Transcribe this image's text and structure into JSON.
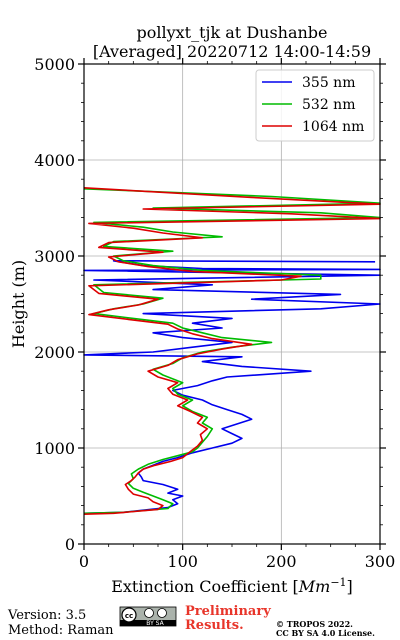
{
  "colors": {
    "s355": "#0000ee",
    "s532": "#00bb00",
    "s1064": "#dd0000",
    "grid": "#b0b0b0",
    "prelim": "#e8352a"
  },
  "footer": {
    "version": "Version: 3.5",
    "method": "Method: Raman",
    "preliminary_line1": "Preliminary",
    "preliminary_line2": "Results.",
    "copyright_line1": "© TROPOS 2022.",
    "copyright_line2": "CC BY SA 4.0 License.",
    "license_badge_text": "BY SA",
    "license_badge_icon": "creative-commons-icon"
  },
  "chart_data": {
    "type": "line",
    "title": "pollyxt_tjk at Dushanbe",
    "subtitle": "[Averaged] 20220712 14:00-14:59",
    "xlabel": "Extinction Coefficient [",
    "xlabel_unit": "Mm",
    "xlabel_unit_exp": "−1",
    "xlabel_close": "]",
    "ylabel": "Height (m)",
    "xlim": [
      0,
      300
    ],
    "ylim": [
      0,
      5000
    ],
    "xticks": [
      0,
      100,
      200,
      300
    ],
    "yticks": [
      0,
      1000,
      2000,
      3000,
      4000,
      5000
    ],
    "xtick_labels": [
      "0",
      "100",
      "200",
      "300"
    ],
    "ytick_labels": [
      "0",
      "1000",
      "2000",
      "3000",
      "4000",
      "5000"
    ],
    "grid": true,
    "legend_position": "top-right",
    "series": [
      {
        "name": "355 nm",
        "color_key": "s355",
        "points": [
          [
            0,
            320
          ],
          [
            40,
            330
          ],
          [
            85,
            380
          ],
          [
            95,
            420
          ],
          [
            90,
            460
          ],
          [
            100,
            500
          ],
          [
            85,
            530
          ],
          [
            95,
            570
          ],
          [
            80,
            620
          ],
          [
            60,
            660
          ],
          [
            58,
            700
          ],
          [
            55,
            740
          ],
          [
            60,
            780
          ],
          [
            70,
            820
          ],
          [
            80,
            860
          ],
          [
            95,
            900
          ],
          [
            110,
            950
          ],
          [
            130,
            1000
          ],
          [
            150,
            1050
          ],
          [
            160,
            1100
          ],
          [
            150,
            1150
          ],
          [
            140,
            1200
          ],
          [
            155,
            1250
          ],
          [
            170,
            1300
          ],
          [
            160,
            1350
          ],
          [
            145,
            1400
          ],
          [
            130,
            1450
          ],
          [
            120,
            1500
          ],
          [
            100,
            1550
          ],
          [
            90,
            1600
          ],
          [
            115,
            1650
          ],
          [
            130,
            1700
          ],
          [
            145,
            1740
          ],
          [
            230,
            1800
          ],
          [
            160,
            1850
          ],
          [
            120,
            1900
          ],
          [
            160,
            1950
          ],
          [
            0,
            1970
          ],
          [
            70,
            2000
          ],
          [
            110,
            2050
          ],
          [
            150,
            2100
          ],
          [
            100,
            2150
          ],
          [
            70,
            2200
          ],
          [
            140,
            2250
          ],
          [
            110,
            2300
          ],
          [
            150,
            2350
          ],
          [
            60,
            2400
          ],
          [
            240,
            2450
          ],
          [
            300,
            2500
          ],
          [
            170,
            2550
          ],
          [
            260,
            2600
          ],
          [
            70,
            2650
          ],
          [
            130,
            2700
          ],
          [
            10,
            2750
          ],
          [
            300,
            2800
          ],
          [
            0,
            2850
          ],
          [
            300,
            2860
          ],
          [
            120,
            2870
          ],
          [
            60,
            2900
          ],
          [
            30,
            2950
          ],
          [
            295,
            2940
          ]
        ]
      },
      {
        "name": "532 nm",
        "color_key": "s532",
        "points": [
          [
            0,
            320
          ],
          [
            40,
            330
          ],
          [
            85,
            370
          ],
          [
            90,
            420
          ],
          [
            80,
            460
          ],
          [
            70,
            500
          ],
          [
            60,
            540
          ],
          [
            50,
            580
          ],
          [
            45,
            630
          ],
          [
            50,
            680
          ],
          [
            48,
            730
          ],
          [
            55,
            780
          ],
          [
            65,
            830
          ],
          [
            80,
            880
          ],
          [
            95,
            920
          ],
          [
            110,
            960
          ],
          [
            115,
            1000
          ],
          [
            120,
            1060
          ],
          [
            125,
            1120
          ],
          [
            130,
            1200
          ],
          [
            120,
            1260
          ],
          [
            125,
            1320
          ],
          [
            110,
            1380
          ],
          [
            100,
            1440
          ],
          [
            110,
            1500
          ],
          [
            95,
            1560
          ],
          [
            90,
            1620
          ],
          [
            100,
            1680
          ],
          [
            80,
            1760
          ],
          [
            70,
            1820
          ],
          [
            90,
            1880
          ],
          [
            100,
            1940
          ],
          [
            120,
            2000
          ],
          [
            150,
            2050
          ],
          [
            190,
            2100
          ],
          [
            140,
            2150
          ],
          [
            120,
            2200
          ],
          [
            100,
            2250
          ],
          [
            90,
            2300
          ],
          [
            50,
            2350
          ],
          [
            10,
            2400
          ],
          [
            30,
            2450
          ],
          [
            60,
            2500
          ],
          [
            80,
            2560
          ],
          [
            20,
            2620
          ],
          [
            10,
            2700
          ],
          [
            240,
            2760
          ],
          [
            240,
            2800
          ],
          [
            120,
            2850
          ],
          [
            70,
            2900
          ],
          [
            40,
            2950
          ],
          [
            30,
            3000
          ],
          [
            90,
            3050
          ],
          [
            20,
            3100
          ],
          [
            30,
            3150
          ],
          [
            140,
            3200
          ],
          [
            90,
            3250
          ],
          [
            60,
            3300
          ],
          [
            10,
            3350
          ],
          [
            300,
            3400
          ],
          [
            240,
            3450
          ],
          [
            70,
            3500
          ],
          [
            300,
            3550
          ],
          [
            190,
            3620
          ],
          [
            0,
            3700
          ]
        ]
      },
      {
        "name": "1064 nm",
        "color_key": "s1064",
        "points": [
          [
            0,
            310
          ],
          [
            30,
            320
          ],
          [
            75,
            360
          ],
          [
            80,
            400
          ],
          [
            70,
            440
          ],
          [
            65,
            480
          ],
          [
            50,
            520
          ],
          [
            45,
            570
          ],
          [
            42,
            620
          ],
          [
            48,
            660
          ],
          [
            52,
            700
          ],
          [
            55,
            740
          ],
          [
            60,
            780
          ],
          [
            72,
            820
          ],
          [
            88,
            860
          ],
          [
            100,
            900
          ],
          [
            105,
            940
          ],
          [
            110,
            980
          ],
          [
            115,
            1020
          ],
          [
            120,
            1080
          ],
          [
            118,
            1140
          ],
          [
            125,
            1200
          ],
          [
            115,
            1260
          ],
          [
            120,
            1320
          ],
          [
            108,
            1380
          ],
          [
            95,
            1440
          ],
          [
            105,
            1500
          ],
          [
            90,
            1560
          ],
          [
            85,
            1620
          ],
          [
            95,
            1680
          ],
          [
            75,
            1740
          ],
          [
            65,
            1800
          ],
          [
            85,
            1860
          ],
          [
            95,
            1920
          ],
          [
            115,
            1980
          ],
          [
            140,
            2030
          ],
          [
            170,
            2080
          ],
          [
            130,
            2140
          ],
          [
            110,
            2190
          ],
          [
            95,
            2240
          ],
          [
            85,
            2290
          ],
          [
            45,
            2340
          ],
          [
            5,
            2390
          ],
          [
            25,
            2440
          ],
          [
            55,
            2490
          ],
          [
            75,
            2550
          ],
          [
            15,
            2610
          ],
          [
            5,
            2690
          ],
          [
            200,
            2750
          ],
          [
            220,
            2790
          ],
          [
            110,
            2840
          ],
          [
            65,
            2890
          ],
          [
            35,
            2940
          ],
          [
            25,
            2990
          ],
          [
            80,
            3040
          ],
          [
            15,
            3090
          ],
          [
            25,
            3140
          ],
          [
            120,
            3190
          ],
          [
            80,
            3240
          ],
          [
            50,
            3290
          ],
          [
            5,
            3340
          ],
          [
            300,
            3390
          ],
          [
            210,
            3440
          ],
          [
            60,
            3490
          ],
          [
            300,
            3540
          ],
          [
            170,
            3610
          ],
          [
            0,
            3710
          ]
        ]
      }
    ]
  }
}
